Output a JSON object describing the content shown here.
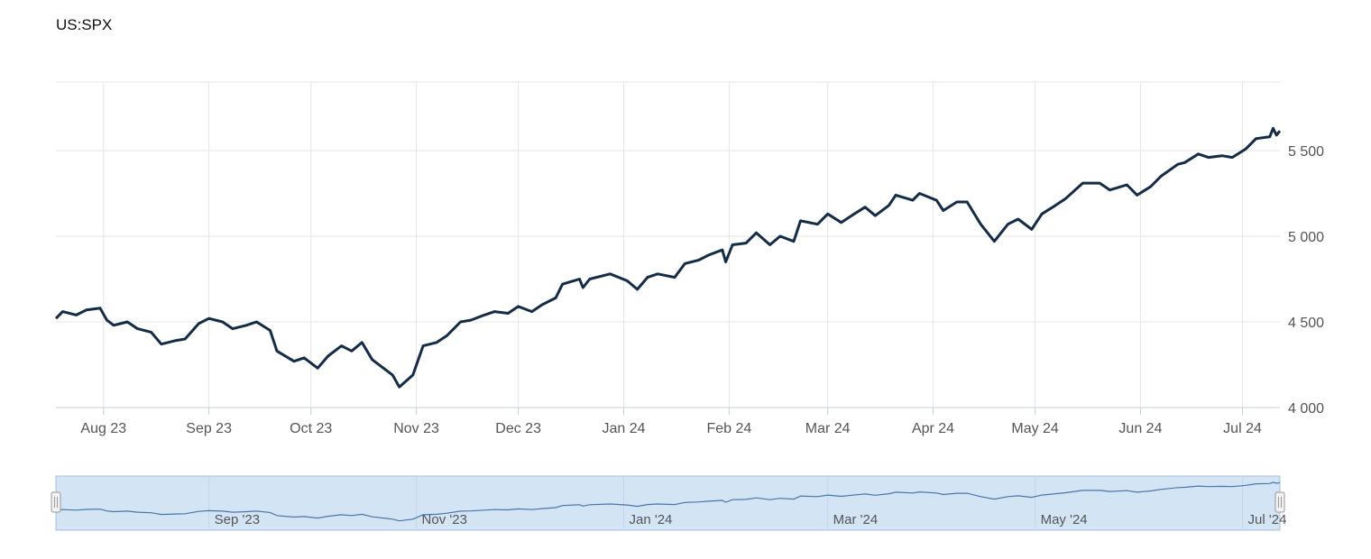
{
  "title": "US:SPX",
  "colors": {
    "line": "#142c45",
    "grid": "#e6e6e6",
    "axis": "#c0cfe0",
    "navigator_fill": "#d3e4f5",
    "navigator_border": "#a7c0dc",
    "navigator_line": "#4a76a8",
    "handle_fill": "#f2f2f2",
    "handle_border": "#999999"
  },
  "chart_data": {
    "type": "line",
    "title": "US:SPX",
    "xlabel": "",
    "ylabel": "",
    "x_range": [
      "2023-07-18",
      "2024-07-12"
    ],
    "ylim": [
      4000,
      5900
    ],
    "y_ticks": [
      4000,
      4500,
      5000,
      5500
    ],
    "y_tick_labels": [
      "4 000",
      "4 500",
      "5 000",
      "5 500"
    ],
    "x_ticks": [
      {
        "date": "2023-08-01",
        "label": "Aug 23"
      },
      {
        "date": "2023-09-01",
        "label": "Sep 23"
      },
      {
        "date": "2023-10-01",
        "label": "Oct 23"
      },
      {
        "date": "2023-11-01",
        "label": "Nov 23"
      },
      {
        "date": "2023-12-01",
        "label": "Dec 23"
      },
      {
        "date": "2024-01-01",
        "label": "Jan 24"
      },
      {
        "date": "2024-02-01",
        "label": "Feb 24"
      },
      {
        "date": "2024-03-01",
        "label": "Mar 24"
      },
      {
        "date": "2024-04-01",
        "label": "Apr 24"
      },
      {
        "date": "2024-05-01",
        "label": "May 24"
      },
      {
        "date": "2024-06-01",
        "label": "Jun 24"
      },
      {
        "date": "2024-07-01",
        "label": "Jul 24"
      }
    ],
    "grid": true,
    "series": [
      {
        "values": [
          [
            "2023-07-18",
            4520
          ],
          [
            "2023-07-20",
            4560
          ],
          [
            "2023-07-24",
            4540
          ],
          [
            "2023-07-27",
            4570
          ],
          [
            "2023-07-31",
            4580
          ],
          [
            "2023-08-02",
            4510
          ],
          [
            "2023-08-04",
            4480
          ],
          [
            "2023-08-08",
            4500
          ],
          [
            "2023-08-11",
            4460
          ],
          [
            "2023-08-15",
            4440
          ],
          [
            "2023-08-18",
            4370
          ],
          [
            "2023-08-22",
            4390
          ],
          [
            "2023-08-25",
            4400
          ],
          [
            "2023-08-29",
            4490
          ],
          [
            "2023-09-01",
            4520
          ],
          [
            "2023-09-05",
            4500
          ],
          [
            "2023-09-08",
            4460
          ],
          [
            "2023-09-12",
            4480
          ],
          [
            "2023-09-15",
            4500
          ],
          [
            "2023-09-19",
            4450
          ],
          [
            "2023-09-21",
            4330
          ],
          [
            "2023-09-26",
            4270
          ],
          [
            "2023-09-29",
            4290
          ],
          [
            "2023-10-03",
            4230
          ],
          [
            "2023-10-06",
            4300
          ],
          [
            "2023-10-10",
            4360
          ],
          [
            "2023-10-13",
            4330
          ],
          [
            "2023-10-16",
            4380
          ],
          [
            "2023-10-19",
            4280
          ],
          [
            "2023-10-23",
            4220
          ],
          [
            "2023-10-25",
            4190
          ],
          [
            "2023-10-27",
            4120
          ],
          [
            "2023-10-31",
            4190
          ],
          [
            "2023-11-03",
            4360
          ],
          [
            "2023-11-07",
            4380
          ],
          [
            "2023-11-10",
            4420
          ],
          [
            "2023-11-14",
            4500
          ],
          [
            "2023-11-17",
            4510
          ],
          [
            "2023-11-21",
            4540
          ],
          [
            "2023-11-24",
            4560
          ],
          [
            "2023-11-28",
            4550
          ],
          [
            "2023-12-01",
            4590
          ],
          [
            "2023-12-05",
            4560
          ],
          [
            "2023-12-08",
            4600
          ],
          [
            "2023-12-12",
            4640
          ],
          [
            "2023-12-14",
            4720
          ],
          [
            "2023-12-19",
            4750
          ],
          [
            "2023-12-20",
            4700
          ],
          [
            "2023-12-22",
            4750
          ],
          [
            "2023-12-28",
            4780
          ],
          [
            "2024-01-02",
            4740
          ],
          [
            "2024-01-05",
            4690
          ],
          [
            "2024-01-08",
            4760
          ],
          [
            "2024-01-11",
            4780
          ],
          [
            "2024-01-16",
            4760
          ],
          [
            "2024-01-19",
            4840
          ],
          [
            "2024-01-23",
            4860
          ],
          [
            "2024-01-26",
            4890
          ],
          [
            "2024-01-30",
            4920
          ],
          [
            "2024-01-31",
            4850
          ],
          [
            "2024-02-02",
            4950
          ],
          [
            "2024-02-06",
            4960
          ],
          [
            "2024-02-09",
            5020
          ],
          [
            "2024-02-13",
            4950
          ],
          [
            "2024-02-16",
            5000
          ],
          [
            "2024-02-20",
            4970
          ],
          [
            "2024-02-22",
            5090
          ],
          [
            "2024-02-27",
            5070
          ],
          [
            "2024-03-01",
            5130
          ],
          [
            "2024-03-05",
            5080
          ],
          [
            "2024-03-08",
            5120
          ],
          [
            "2024-03-12",
            5170
          ],
          [
            "2024-03-15",
            5120
          ],
          [
            "2024-03-19",
            5180
          ],
          [
            "2024-03-21",
            5240
          ],
          [
            "2024-03-26",
            5210
          ],
          [
            "2024-03-28",
            5250
          ],
          [
            "2024-04-02",
            5210
          ],
          [
            "2024-04-04",
            5150
          ],
          [
            "2024-04-08",
            5200
          ],
          [
            "2024-04-11",
            5200
          ],
          [
            "2024-04-15",
            5070
          ],
          [
            "2024-04-19",
            4970
          ],
          [
            "2024-04-23",
            5070
          ],
          [
            "2024-04-26",
            5100
          ],
          [
            "2024-04-30",
            5040
          ],
          [
            "2024-05-03",
            5130
          ],
          [
            "2024-05-07",
            5180
          ],
          [
            "2024-05-10",
            5220
          ],
          [
            "2024-05-15",
            5310
          ],
          [
            "2024-05-20",
            5310
          ],
          [
            "2024-05-23",
            5270
          ],
          [
            "2024-05-28",
            5300
          ],
          [
            "2024-05-31",
            5240
          ],
          [
            "2024-06-04",
            5290
          ],
          [
            "2024-06-07",
            5350
          ],
          [
            "2024-06-12",
            5420
          ],
          [
            "2024-06-14",
            5430
          ],
          [
            "2024-06-18",
            5480
          ],
          [
            "2024-06-21",
            5460
          ],
          [
            "2024-06-25",
            5470
          ],
          [
            "2024-06-28",
            5460
          ],
          [
            "2024-07-02",
            5510
          ],
          [
            "2024-07-05",
            5570
          ],
          [
            "2024-07-09",
            5580
          ],
          [
            "2024-07-10",
            5630
          ],
          [
            "2024-07-11",
            5590
          ],
          [
            "2024-07-12",
            5615
          ]
        ]
      }
    ],
    "navigator": {
      "x_ticks": [
        {
          "date": "2023-09-01",
          "label": "Sep '23"
        },
        {
          "date": "2023-11-01",
          "label": "Nov '23"
        },
        {
          "date": "2024-01-01",
          "label": "Jan '24"
        },
        {
          "date": "2024-03-01",
          "label": "Mar '24"
        },
        {
          "date": "2024-05-01",
          "label": "May '24"
        },
        {
          "date": "2024-07-01",
          "label": "Jul '24"
        }
      ]
    }
  }
}
